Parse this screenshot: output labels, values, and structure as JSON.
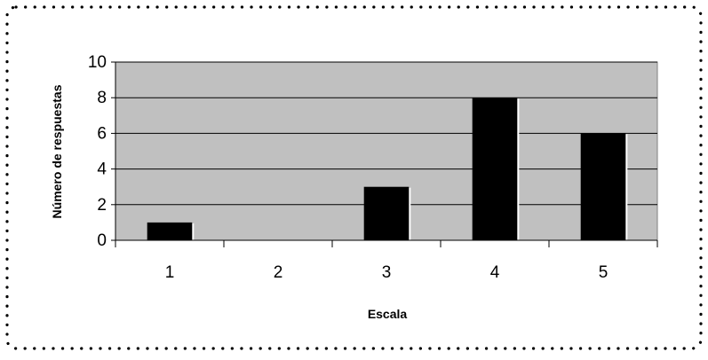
{
  "chart_data": {
    "type": "bar",
    "categories": [
      "1",
      "2",
      "3",
      "4",
      "5"
    ],
    "values": [
      1,
      0,
      3,
      8,
      6
    ],
    "xlabel": "Escala",
    "ylabel": "Número de respuestas",
    "ylim": [
      0,
      10
    ],
    "yticks": [
      0,
      2,
      4,
      6,
      8,
      10
    ],
    "grid": true,
    "legend": "none",
    "colors": {
      "bar": "#000000",
      "plot_background": "#c0c0c0",
      "gridline": "#000000",
      "frame_border": "#000000"
    }
  }
}
